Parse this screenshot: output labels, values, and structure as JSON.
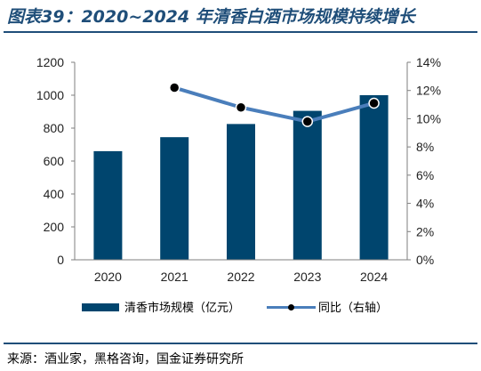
{
  "title": "图表39：2020~2024 年清香白酒市场规模持续增长",
  "source": "来源：酒业家，黑格咨询，国金证券研究所",
  "colors": {
    "bar": "#00456e",
    "line": "#4a7ebb",
    "rule": "#1f4e79"
  },
  "chart_data": {
    "type": "bar+line",
    "categories": [
      "2020",
      "2021",
      "2022",
      "2023",
      "2024"
    ],
    "series": [
      {
        "name": "清香市场规模（亿元）",
        "type": "bar",
        "axis": "left",
        "values": [
          660,
          745,
          825,
          905,
          1000
        ]
      },
      {
        "name": "同比（右轴）",
        "type": "line",
        "axis": "right",
        "values": [
          null,
          12.2,
          10.8,
          9.8,
          11.1
        ]
      }
    ],
    "left_axis": {
      "ylim": [
        0,
        1200
      ],
      "ticks": [
        "0",
        "200",
        "400",
        "600",
        "800",
        "1000",
        "1200"
      ]
    },
    "right_axis": {
      "ylim": [
        0,
        14
      ],
      "ticks": [
        "0%",
        "2%",
        "4%",
        "6%",
        "8%",
        "10%",
        "12%",
        "14%"
      ]
    },
    "legend": "bottom",
    "grid": false
  }
}
